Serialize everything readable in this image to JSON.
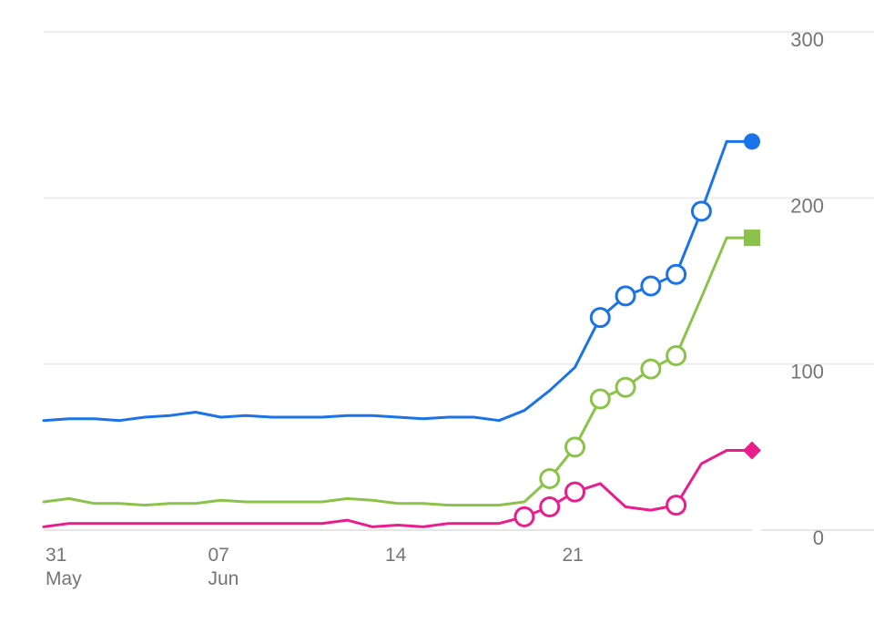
{
  "chart_data": {
    "type": "line",
    "title": "",
    "xlabel": "",
    "ylabel": "",
    "x_axis_labels": [
      {
        "date": "2020-05-31",
        "day": "31",
        "month": "May"
      },
      {
        "date": "2020-06-07",
        "day": "07",
        "month": "Jun"
      },
      {
        "date": "2020-06-14",
        "day": "14",
        "month": ""
      },
      {
        "date": "2020-06-21",
        "day": "21",
        "month": ""
      }
    ],
    "x": [
      "2020-05-31",
      "2020-06-01",
      "2020-06-02",
      "2020-06-03",
      "2020-06-04",
      "2020-06-05",
      "2020-06-06",
      "2020-06-07",
      "2020-06-08",
      "2020-06-09",
      "2020-06-10",
      "2020-06-11",
      "2020-06-12",
      "2020-06-13",
      "2020-06-14",
      "2020-06-15",
      "2020-06-16",
      "2020-06-17",
      "2020-06-18",
      "2020-06-19",
      "2020-06-20",
      "2020-06-21",
      "2020-06-22",
      "2020-06-23",
      "2020-06-24",
      "2020-06-25",
      "2020-06-26",
      "2020-06-27",
      "2020-06-28"
    ],
    "xlim": [
      "2020-05-31",
      "2020-06-28"
    ],
    "y_ticks": [
      0,
      100,
      200,
      300
    ],
    "ylim": [
      0,
      300
    ],
    "grid": true,
    "y_axis_position": "right",
    "series": [
      {
        "color": "#1a73e8",
        "end_marker": "circle",
        "values": [
          66,
          67,
          67,
          66,
          68,
          69,
          71,
          68,
          69,
          68,
          68,
          68,
          69,
          69,
          68,
          67,
          68,
          68,
          66,
          72,
          84,
          98,
          128,
          141,
          147,
          154,
          192,
          234,
          234
        ],
        "open_markers": [
          "2020-06-22",
          "2020-06-23",
          "2020-06-24",
          "2020-06-25",
          "2020-06-26"
        ]
      },
      {
        "color": "#8bc34a",
        "end_marker": "square",
        "values": [
          17,
          19,
          16,
          16,
          15,
          16,
          16,
          18,
          17,
          17,
          17,
          17,
          19,
          18,
          16,
          16,
          15,
          15,
          15,
          17,
          31,
          50,
          79,
          86,
          97,
          105,
          140,
          176,
          176
        ],
        "open_markers": [
          "2020-06-20",
          "2020-06-21",
          "2020-06-22",
          "2020-06-23",
          "2020-06-24",
          "2020-06-25"
        ]
      },
      {
        "color": "#e91e8c",
        "end_marker": "diamond",
        "values": [
          2,
          4,
          4,
          4,
          4,
          4,
          4,
          4,
          4,
          4,
          4,
          4,
          6,
          2,
          3,
          2,
          4,
          4,
          4,
          8,
          14,
          23,
          28,
          14,
          12,
          15,
          40,
          48,
          48
        ],
        "open_markers": [
          "2020-06-19",
          "2020-06-20",
          "2020-06-21",
          "2020-06-25"
        ]
      }
    ]
  }
}
